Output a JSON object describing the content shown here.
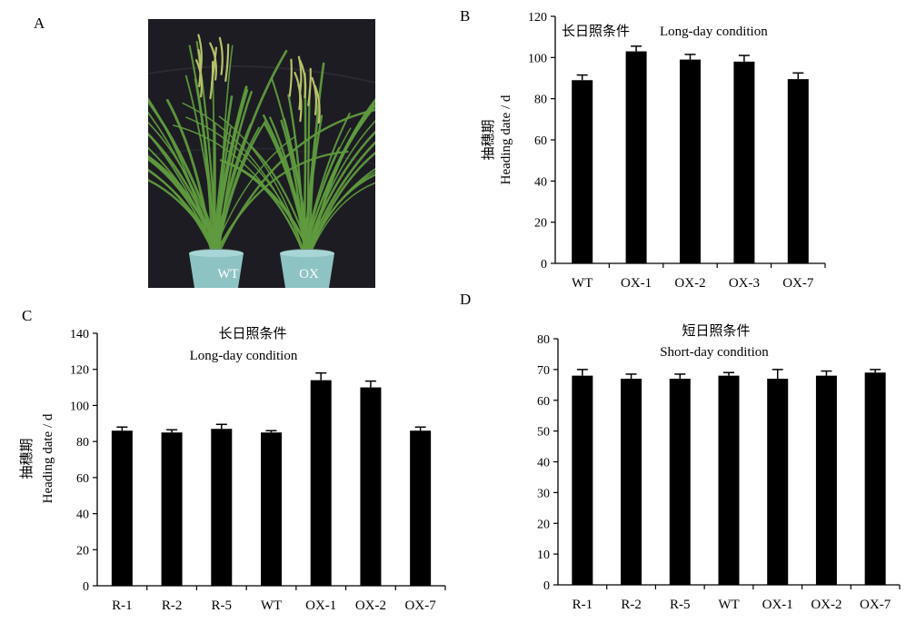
{
  "panels": {
    "a": "A",
    "b": "B",
    "c": "C",
    "d": "D"
  },
  "photo": {
    "labels": [
      "WT",
      "OX"
    ],
    "colors": {
      "background": "#1c1c22",
      "leaf": "#5f9a3e",
      "panicle": "#b7c06a",
      "pot": "#8ec3c4"
    }
  },
  "chart_data": [
    {
      "id": "B",
      "type": "bar",
      "title_cn": "长日照条件",
      "title_en": "Long-day condition",
      "ylabel_cn": "抽穗期",
      "ylabel_en": "Heading date / d",
      "categories": [
        "WT",
        "OX-1",
        "OX-2",
        "OX-3",
        "OX-7"
      ],
      "values": [
        89,
        103,
        99,
        98,
        89.5
      ],
      "errors": [
        2.5,
        2.5,
        2.5,
        3,
        3
      ],
      "ylim": [
        0,
        120
      ],
      "yticks": [
        0,
        20,
        40,
        60,
        80,
        100,
        120
      ],
      "bar_color": "#000000",
      "grid": false
    },
    {
      "id": "C",
      "type": "bar",
      "title_cn": "长日照条件",
      "title_en": "Long-day condition",
      "ylabel_cn": "抽穗期",
      "ylabel_en": "Heading date / d",
      "categories": [
        "R-1",
        "R-2",
        "R-5",
        "WT",
        "OX-1",
        "OX-2",
        "OX-7"
      ],
      "values": [
        86,
        85,
        87,
        85,
        114,
        110,
        86
      ],
      "errors": [
        2,
        1.5,
        2.5,
        1,
        4,
        3.5,
        2
      ],
      "ylim": [
        0,
        140
      ],
      "yticks": [
        0,
        20,
        40,
        60,
        80,
        100,
        120,
        140
      ],
      "bar_color": "#000000",
      "grid": false
    },
    {
      "id": "D",
      "type": "bar",
      "title_cn": "短日照条件",
      "title_en": "Short-day condition",
      "ylabel_cn": "",
      "ylabel_en": "",
      "categories": [
        "R-1",
        "R-2",
        "R-5",
        "WT",
        "OX-1",
        "OX-2",
        "OX-7"
      ],
      "values": [
        68,
        67,
        67,
        68,
        67,
        68,
        69
      ],
      "errors": [
        2,
        1.5,
        1.5,
        1,
        3,
        1.5,
        1
      ],
      "ylim": [
        0,
        80
      ],
      "yticks": [
        0,
        10,
        20,
        30,
        40,
        50,
        60,
        70,
        80
      ],
      "bar_color": "#000000",
      "grid": false
    }
  ]
}
